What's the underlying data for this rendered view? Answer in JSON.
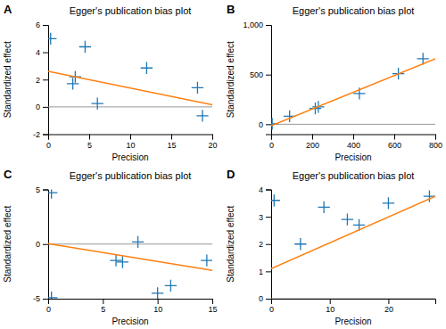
{
  "chart_data": [
    {
      "type": "scatter",
      "label": "A",
      "title": "Egger's publication bias plot",
      "xlabel": "Precision",
      "ylabel": "Standardized effect",
      "hline": 0,
      "series": [
        {
          "type": "scatter",
          "marker": "plus",
          "x": [
            0.3,
            3.0,
            3.3,
            4.5,
            6.0,
            12.0,
            18.2,
            18.8
          ],
          "values": [
            5.0,
            1.7,
            2.2,
            4.4,
            0.25,
            2.85,
            1.4,
            -0.65
          ]
        },
        {
          "type": "line",
          "x": [
            0,
            20
          ],
          "values": [
            2.6,
            0.15
          ]
        }
      ],
      "xlim": [
        0,
        20
      ],
      "ylim": [
        -2,
        6
      ],
      "xticks": [
        0,
        5,
        10,
        15,
        20
      ],
      "yticks": [
        -2,
        0,
        2,
        4,
        6
      ]
    },
    {
      "type": "scatter",
      "label": "B",
      "title": "Egger's publication bias plot",
      "xlabel": "Precision",
      "ylabel": "Standardized effect",
      "hline": 0,
      "series": [
        {
          "type": "scatter",
          "marker": "plus",
          "x": [
            5,
            90,
            215,
            230,
            430,
            620,
            740
          ],
          "values": [
            5,
            80,
            160,
            175,
            310,
            510,
            660
          ]
        },
        {
          "type": "line",
          "x": [
            0,
            800
          ],
          "values": [
            -15,
            660
          ]
        }
      ],
      "xlim": [
        0,
        800
      ],
      "ylim": [
        -100,
        1000
      ],
      "xticks": [
        0,
        200,
        400,
        600,
        800
      ],
      "yticks": [
        0,
        500,
        {
          "value": 1000,
          "label": "1,000"
        }
      ]
    },
    {
      "type": "scatter",
      "label": "C",
      "title": "Egger's publication bias plot",
      "xlabel": "Precision",
      "ylabel": "Standardized effect",
      "hline": 0,
      "series": [
        {
          "type": "scatter",
          "marker": "plus",
          "x": [
            0.3,
            0.3,
            6.2,
            6.8,
            8.2,
            10.0,
            11.2,
            14.5
          ],
          "values": [
            4.7,
            -4.9,
            -1.5,
            -1.65,
            0.2,
            -4.5,
            -3.8,
            -1.5
          ]
        },
        {
          "type": "line",
          "x": [
            0,
            15
          ],
          "values": [
            0.05,
            -2.4
          ]
        }
      ],
      "xlim": [
        0,
        15
      ],
      "ylim": [
        -5,
        5
      ],
      "xticks": [
        0,
        5,
        10,
        15
      ],
      "yticks": [
        -5,
        0,
        5
      ]
    },
    {
      "type": "scatter",
      "label": "D",
      "title": "Egger's publication bias plot",
      "xlabel": "Precision",
      "ylabel": "Standardized effect",
      "hline": 0,
      "series": [
        {
          "type": "scatter",
          "marker": "plus",
          "x": [
            0.5,
            5,
            9,
            13,
            15,
            20,
            27
          ],
          "values": [
            3.6,
            2.0,
            3.35,
            2.9,
            2.7,
            3.5,
            3.75
          ]
        },
        {
          "type": "line",
          "x": [
            0,
            28
          ],
          "values": [
            1.1,
            3.75
          ]
        }
      ],
      "xlim": [
        0,
        28
      ],
      "ylim": [
        0,
        4
      ],
      "xticks": [
        0,
        10,
        20
      ],
      "yticks": [
        0,
        1,
        2,
        3,
        4
      ]
    }
  ]
}
